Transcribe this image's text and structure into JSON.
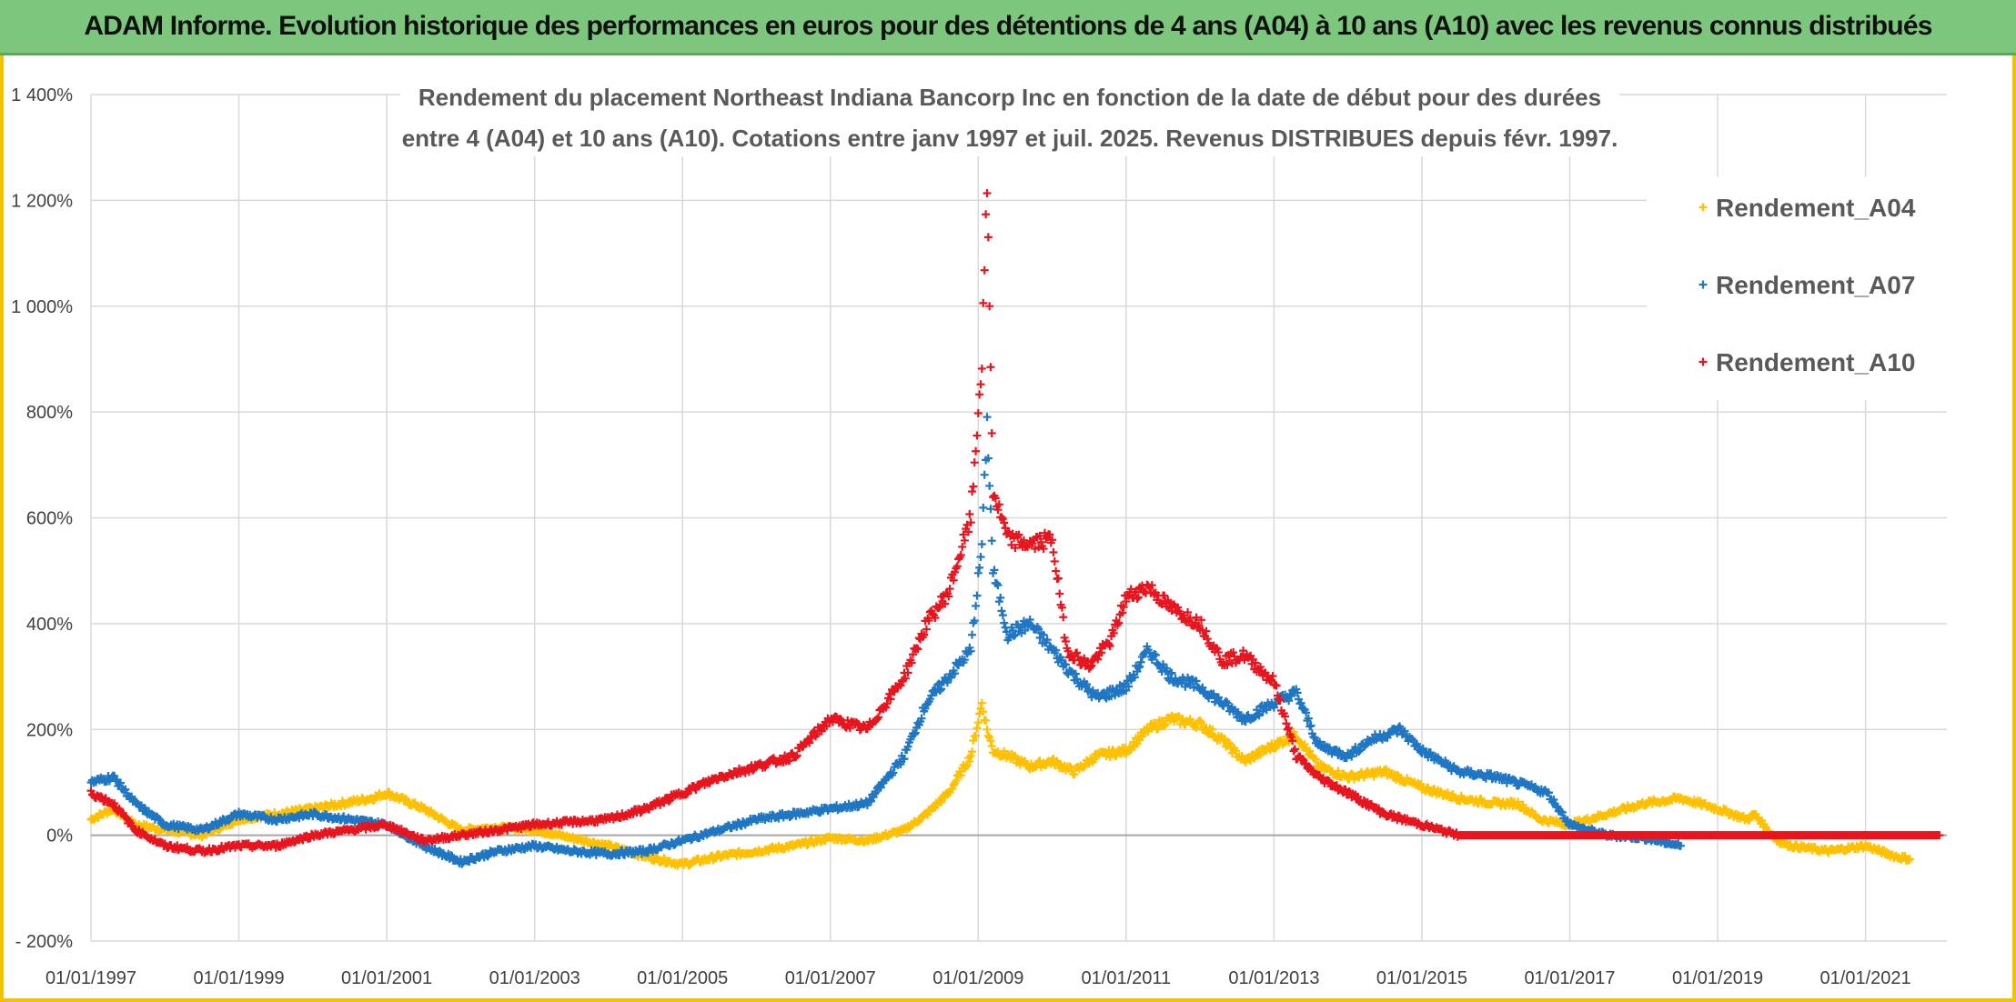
{
  "banner": {
    "title": "ADAM Informe. Evolution historique des performances en euros pour des détentions de 4 ans (A04) à 10 ans (A10) avec les revenus connus distribués"
  },
  "colors": {
    "banner_bg": "#7dc67d",
    "frame": "#f2c200",
    "a04": "#ffc000",
    "a07": "#1f77c4",
    "a10": "#e8141e",
    "grid": "#d9d9d9"
  },
  "chart_data": {
    "type": "scatter",
    "title_lines": [
      "Rendement du placement Northeast Indiana Bancorp Inc en fonction de la date de début pour des durées",
      "entre 4 (A04) et 10 ans (A10). Cotations entre janv 1997 et juil. 2025. Revenus DISTRIBUES depuis févr. 1997."
    ],
    "x_tick_labels": [
      "01/01/1997",
      "01/01/1999",
      "01/01/2001",
      "01/01/2003",
      "01/01/2005",
      "01/01/2007",
      "01/01/2009",
      "01/01/2011",
      "01/01/2013",
      "01/01/2015",
      "01/01/2017",
      "01/01/2019",
      "01/01/2021"
    ],
    "xlim": [
      1997.0,
      2022.1
    ],
    "y_tick_labels": [
      "- 200%",
      "0%",
      "200%",
      "400%",
      "600%",
      "800%",
      "1 000%",
      "1 200%",
      "1 400%"
    ],
    "ylim": [
      -200,
      1400
    ],
    "grid": true,
    "legend_position": "top-right",
    "legend": [
      "Rendement_A04",
      "Rendement_A07",
      "Rendement_A10"
    ],
    "marker": "+",
    "series": [
      {
        "name": "Rendement_A04",
        "x": [
          1997.0,
          1997.3,
          1997.6,
          1998.0,
          1998.5,
          1999.0,
          1999.5,
          2000.0,
          2000.4,
          2000.8,
          2001.0,
          2001.5,
          2002.0,
          2002.5,
          2003.0,
          2003.5,
          2004.0,
          2004.5,
          2005.0,
          2005.5,
          2006.0,
          2006.5,
          2007.0,
          2007.5,
          2008.0,
          2008.3,
          2008.6,
          2008.9,
          2009.05,
          2009.12,
          2009.2,
          2009.4,
          2009.7,
          2010.0,
          2010.3,
          2010.6,
          2011.0,
          2011.3,
          2011.6,
          2012.0,
          2012.3,
          2012.6,
          2013.0,
          2013.3,
          2013.6,
          2014.0,
          2014.5,
          2015.0,
          2015.5,
          2016.0,
          2016.3,
          2016.6,
          2017.0,
          2017.5,
          2018.0,
          2018.5,
          2019.0,
          2019.4,
          2019.5,
          2019.8,
          2020.0,
          2020.5,
          2021.0,
          2021.4,
          2021.6
        ],
        "y": [
          30,
          50,
          20,
          10,
          0,
          30,
          40,
          50,
          60,
          70,
          80,
          50,
          10,
          15,
          10,
          -5,
          -20,
          -40,
          -55,
          -40,
          -30,
          -20,
          -5,
          -10,
          10,
          40,
          80,
          150,
          250,
          200,
          160,
          150,
          130,
          140,
          120,
          150,
          160,
          200,
          220,
          210,
          180,
          140,
          170,
          190,
          130,
          110,
          120,
          90,
          70,
          60,
          60,
          30,
          20,
          40,
          60,
          70,
          50,
          30,
          40,
          -10,
          -20,
          -30,
          -20,
          -40,
          -45
        ]
      },
      {
        "name": "Rendement_A07",
        "x": [
          1997.0,
          1997.3,
          1997.6,
          1998.0,
          1998.5,
          1999.0,
          1999.5,
          2000.0,
          2000.5,
          2001.0,
          2001.5,
          2002.0,
          2002.5,
          2003.0,
          2003.5,
          2004.0,
          2004.5,
          2005.0,
          2005.5,
          2006.0,
          2006.5,
          2007.0,
          2007.5,
          2008.0,
          2008.3,
          2008.6,
          2008.9,
          2009.05,
          2009.12,
          2009.2,
          2009.4,
          2009.7,
          2010.0,
          2010.3,
          2010.6,
          2011.0,
          2011.3,
          2011.6,
          2012.0,
          2012.3,
          2012.6,
          2013.0,
          2013.3,
          2013.6,
          2014.0,
          2014.3,
          2014.7,
          2015.0,
          2015.5,
          2016.0,
          2016.5,
          2016.7,
          2017.0,
          2017.5,
          2018.0,
          2018.5
        ],
        "y": [
          100,
          110,
          60,
          20,
          10,
          40,
          30,
          40,
          30,
          20,
          -20,
          -50,
          -30,
          -20,
          -30,
          -35,
          -30,
          -10,
          10,
          30,
          40,
          50,
          60,
          150,
          250,
          300,
          350,
          550,
          780,
          500,
          380,
          400,
          350,
          300,
          260,
          280,
          350,
          300,
          280,
          250,
          220,
          250,
          270,
          170,
          150,
          180,
          200,
          160,
          120,
          110,
          90,
          80,
          20,
          0,
          -5,
          -20
        ]
      },
      {
        "name": "Rendement_A10",
        "x": [
          1997.0,
          1997.3,
          1997.6,
          1998.0,
          1998.5,
          1999.0,
          1999.5,
          2000.0,
          2000.5,
          2001.0,
          2001.5,
          2002.0,
          2002.5,
          2003.0,
          2003.5,
          2004.0,
          2004.5,
          2005.0,
          2005.5,
          2006.0,
          2006.5,
          2007.0,
          2007.5,
          2008.0,
          2008.3,
          2008.6,
          2008.9,
          2009.05,
          2009.12,
          2009.2,
          2009.4,
          2009.7,
          2010.0,
          2010.2,
          2010.5,
          2010.8,
          2011.0,
          2011.3,
          2011.6,
          2012.0,
          2012.3,
          2012.6,
          2013.0,
          2013.3,
          2013.6,
          2014.0,
          2014.5,
          2015.0,
          2015.5,
          2015.7,
          2016.0,
          2017.0,
          2018.0,
          2019.0,
          2020.0,
          2021.0,
          2022.0
        ],
        "y": [
          80,
          60,
          10,
          -20,
          -30,
          -20,
          -20,
          0,
          10,
          20,
          -10,
          0,
          10,
          20,
          25,
          30,
          50,
          80,
          110,
          130,
          150,
          220,
          200,
          300,
          400,
          460,
          600,
          900,
          1230,
          650,
          560,
          550,
          560,
          350,
          320,
          370,
          450,
          470,
          430,
          400,
          330,
          340,
          290,
          150,
          110,
          80,
          40,
          20,
          0,
          0,
          0,
          0,
          0,
          0,
          0,
          0,
          0
        ]
      }
    ]
  }
}
